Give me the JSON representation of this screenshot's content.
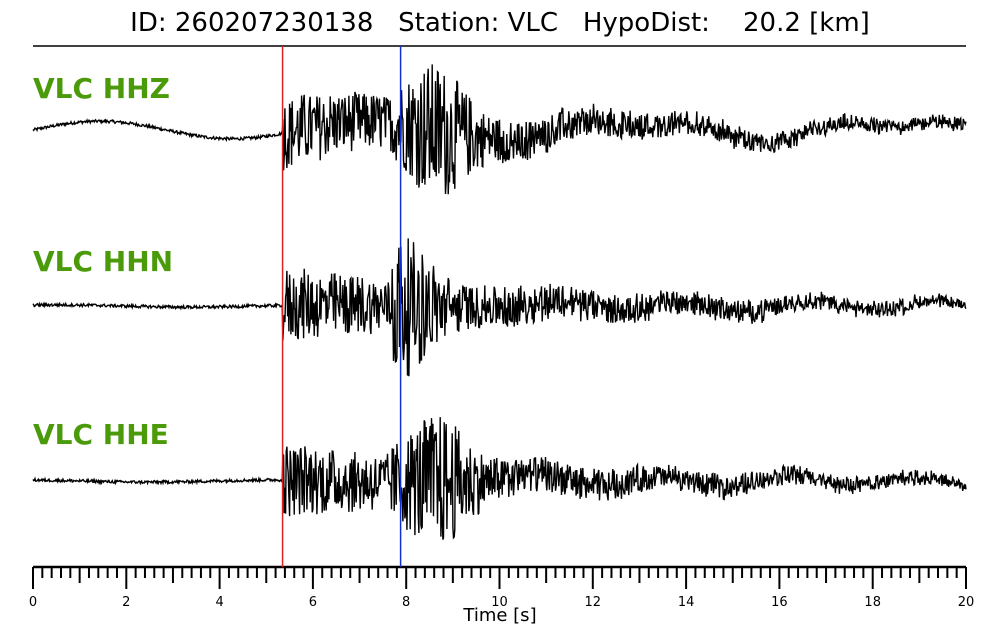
{
  "header": {
    "title": "ID: 260207230138   Station: VLC   HypoDist:    20.2 [km]"
  },
  "chart_data": {
    "type": "line",
    "title": "ID: 260207230138   Station: VLC   HypoDist:    20.2 [km]",
    "xlabel": "Time [s]",
    "xlim": [
      0,
      20
    ],
    "x_ticks": [
      "0",
      "2",
      "4",
      "6",
      "8",
      "10",
      "12",
      "14",
      "16",
      "18",
      "20"
    ],
    "minor_tick_step": 0.2,
    "grid": false,
    "label_color": "#4a9a0a",
    "picks": [
      {
        "phase": "P",
        "time": 5.35,
        "color": "#e02020"
      },
      {
        "phase": "S",
        "time": 7.88,
        "color": "#1030d0"
      }
    ],
    "series": [
      {
        "name": "VLC HHZ",
        "waveform": "seismogram",
        "pre_event_drift": 0.4,
        "max_time": 8.65
      },
      {
        "name": "VLC HHN",
        "waveform": "seismogram",
        "pre_event_drift": 0.05,
        "max_time": 7.9
      },
      {
        "name": "VLC HHE",
        "waveform": "seismogram",
        "pre_event_drift": 0.05,
        "max_time": 8.65
      }
    ]
  }
}
